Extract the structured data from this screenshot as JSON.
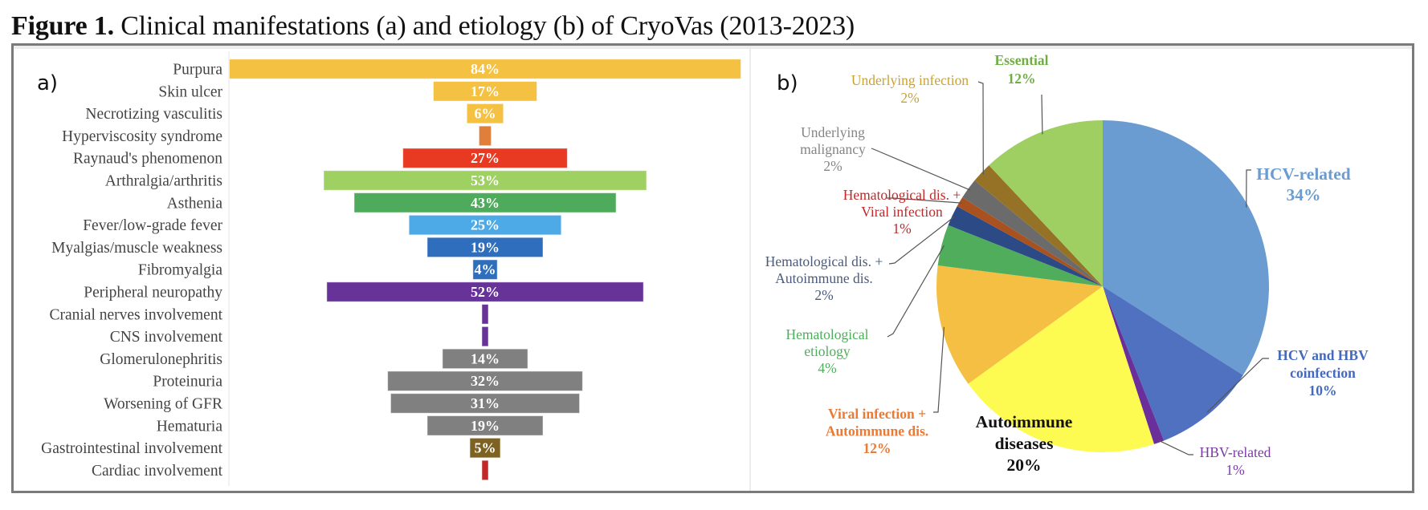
{
  "figure": {
    "title_bold": "Figure 1.",
    "title_rest": " Clinical manifestations (a) and etiology (b) of CryoVas (2013-2023)"
  },
  "chart_data": [
    {
      "type": "bar",
      "orientation": "horizontal-centered (funnel)",
      "panel_label": "a)",
      "title": "Clinical manifestations",
      "xlabel": "",
      "ylabel": "",
      "unit": "%",
      "xlim": [
        0,
        84
      ],
      "grid": false,
      "legend": "none",
      "categories": [
        "Purpura",
        "Skin ulcer",
        "Necrotizing vasculitis",
        "Hyperviscosity syndrome",
        "Raynaud's phenomenon",
        "Arthralgia/arthritis",
        "Asthenia",
        "Fever/low-grade fever",
        "Myalgias/muscle weakness",
        "Fibromyalgia",
        "Peripheral neuropathy",
        "Cranial nerves involvement",
        "CNS involvement",
        "Glomerulonephritis",
        "Proteinuria",
        "Worsening of GFR",
        "Hematuria",
        "Gastrointestinal involvement",
        "Cardiac involvement"
      ],
      "values": [
        84,
        17,
        6,
        2,
        27,
        53,
        43,
        25,
        19,
        4,
        52,
        1,
        1,
        14,
        32,
        31,
        19,
        5,
        1
      ],
      "data_labels": [
        "84%",
        "17%",
        "6%",
        "",
        "27%",
        "53%",
        "43%",
        "25%",
        "19%",
        "4%",
        "52%",
        "",
        "",
        "14%",
        "32%",
        "31%",
        "19%",
        "5%",
        ""
      ],
      "colors": [
        "#f4c142",
        "#f4c142",
        "#f4c142",
        "#e07f3c",
        "#e83a23",
        "#9fd062",
        "#4fab5c",
        "#4eaae6",
        "#2f6ebd",
        "#2f6ebd",
        "#673399",
        "#673399",
        "#673399",
        "#808080",
        "#808080",
        "#808080",
        "#808080",
        "#7e6222",
        "#c0282a"
      ]
    },
    {
      "type": "pie",
      "panel_label": "b)",
      "title": "Etiology",
      "unit": "%",
      "start_angle": "12 o'clock, clockwise",
      "legend": "none (leader-line labels)",
      "slices": [
        {
          "label_lines": [
            "HCV-related",
            "34%"
          ],
          "value": 34,
          "color": "#6a9bd1",
          "label_color": "#6a9bd1",
          "bold": true,
          "big": true
        },
        {
          "label_lines": [
            "HCV and HBV",
            "coinfection",
            "10%"
          ],
          "value": 10,
          "color": "#4f71bf",
          "label_color": "#4469c0",
          "bold": true,
          "big": false
        },
        {
          "label_lines": [
            "HBV-related",
            "1%"
          ],
          "value": 1,
          "color": "#6a2f9a",
          "label_color": "#7a3aa5",
          "bold": false,
          "big": false
        },
        {
          "label_lines": [
            "Autoimmune",
            "diseases",
            "20%"
          ],
          "value": 20,
          "color": "#fdfb52",
          "label_color": "#111111",
          "bold": true,
          "big": true
        },
        {
          "label_lines": [
            "Viral infection +",
            "Autoimmune dis.",
            "12%"
          ],
          "value": 12,
          "color": "#f4bf42",
          "label_color": "#ea7a34",
          "bold": true,
          "big": false
        },
        {
          "label_lines": [
            "Hematological",
            "etiology",
            "4%"
          ],
          "value": 4,
          "color": "#50ad5b",
          "label_color": "#4fae5c",
          "bold": false,
          "big": false
        },
        {
          "label_lines": [
            "Hematological dis. +",
            "Autoimmune dis.",
            "2%"
          ],
          "value": 2,
          "color": "#2b4a86",
          "label_color": "#4b5a78",
          "bold": false,
          "big": false
        },
        {
          "label_lines": [
            "Hematological dis. +",
            "Viral infection",
            "1%"
          ],
          "value": 1,
          "color": "#a9521f",
          "label_color": "#c0282a",
          "bold": false,
          "big": false
        },
        {
          "label_lines": [
            "Underlying",
            "malignancy",
            "2%"
          ],
          "value": 2,
          "color": "#6b6b6b",
          "label_color": "#858585",
          "bold": false,
          "big": false
        },
        {
          "label_lines": [
            "Underlying infection",
            "2%"
          ],
          "value": 2,
          "color": "#957225",
          "label_color": "#c9a234",
          "bold": false,
          "big": false
        },
        {
          "label_lines": [
            "Essential",
            "12%"
          ],
          "value": 12,
          "color": "#9fce62",
          "label_color": "#70ad47",
          "bold": true,
          "big": false
        }
      ]
    }
  ]
}
